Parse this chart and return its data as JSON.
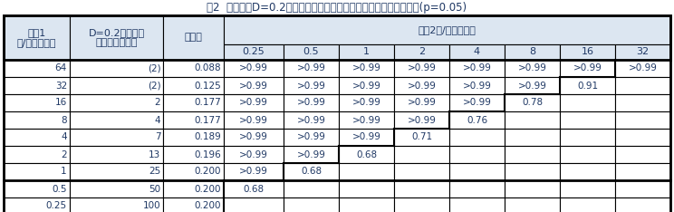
{
  "title": "表2  目標精度D=0.2の場合の必要サンプル数と平均値の差の検出力(p=0.05)",
  "sub_labels": [
    "0.25",
    "0.5",
    "1",
    "2",
    "4",
    "8",
    "16",
    "32"
  ],
  "rows": [
    [
      "64",
      "(2)",
      "0.088",
      ">0.99",
      ">0.99",
      ">0.99",
      ">0.99",
      ">0.99",
      ">0.99",
      ">0.99",
      ">0.99"
    ],
    [
      "32",
      "(2)",
      "0.125",
      ">0.99",
      ">0.99",
      ">0.99",
      ">0.99",
      ">0.99",
      ">0.99",
      "0.91",
      ""
    ],
    [
      "16",
      "2",
      "0.177",
      ">0.99",
      ">0.99",
      ">0.99",
      ">0.99",
      ">0.99",
      "0.78",
      "",
      ""
    ],
    [
      "8",
      "4",
      "0.177",
      ">0.99",
      ">0.99",
      ">0.99",
      ">0.99",
      "0.76",
      "",
      "",
      ""
    ],
    [
      "4",
      "7",
      "0.189",
      ">0.99",
      ">0.99",
      ">0.99",
      "0.71",
      "",
      "",
      "",
      ""
    ],
    [
      "2",
      "13",
      "0.196",
      ">0.99",
      ">0.99",
      "0.68",
      "",
      "",
      "",
      "",
      ""
    ],
    [
      "1",
      "25",
      "0.200",
      ">0.99",
      "0.68",
      "",
      "",
      "",
      "",
      "",
      ""
    ],
    [
      "0.5",
      "50",
      "0.200",
      "0.68",
      "",
      "",
      "",
      "",
      "",
      "",
      ""
    ],
    [
      "0.25",
      "100",
      "0.200",
      "",
      "",
      "",
      "",
      "",
      "",
      "",
      ""
    ]
  ],
  "thick_border_after_row": 6,
  "header_bg": "#dce6f1",
  "cell_bg": "#ffffff",
  "border_color": "#000000",
  "text_color_blue": "#1f3864",
  "title_fontsize": 8.5,
  "cell_fontsize": 7.5,
  "header_fontsize": 8.0
}
